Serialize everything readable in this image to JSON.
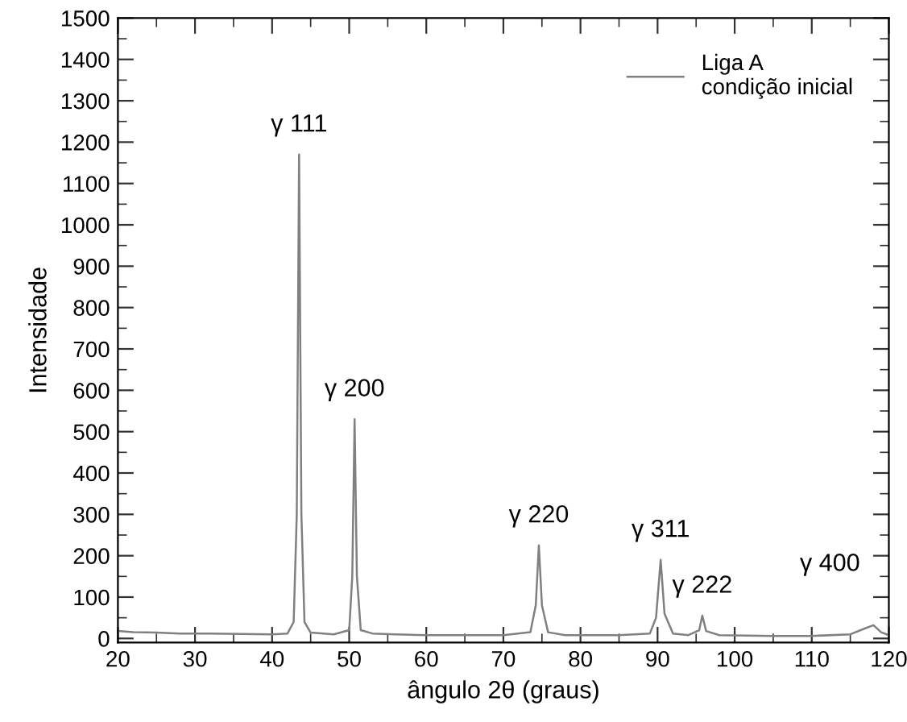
{
  "chart_data": {
    "type": "line",
    "xlabel": "ângulo 2θ (graus)",
    "ylabel": "Intensidade",
    "x": [
      20,
      22,
      25,
      28,
      32,
      36,
      40,
      42,
      42.8,
      43.2,
      43.5,
      43.8,
      44.2,
      45,
      48,
      50,
      50.4,
      50.7,
      51.0,
      51.5,
      53,
      56,
      60,
      65,
      70,
      73.5,
      74.2,
      74.6,
      75,
      75.8,
      78,
      85,
      89,
      89.8,
      90.4,
      90.9,
      92,
      94,
      95.4,
      95.8,
      96.3,
      98,
      105,
      110,
      115,
      117,
      118,
      119,
      120
    ],
    "series": [
      {
        "name": "Liga A\ncondição inicial",
        "color": "#808080",
        "values": [
          18,
          15,
          14,
          12,
          12,
          11,
          10,
          12,
          40,
          300,
          1170,
          300,
          40,
          14,
          10,
          20,
          150,
          530,
          150,
          20,
          12,
          10,
          8,
          8,
          8,
          15,
          80,
          225,
          80,
          15,
          8,
          8,
          12,
          50,
          190,
          60,
          12,
          8,
          20,
          55,
          18,
          8,
          6,
          6,
          10,
          25,
          32,
          15,
          8
        ]
      }
    ],
    "annotations": [
      {
        "text": "γ 111",
        "x": 43.5,
        "y": 1170
      },
      {
        "text": "γ 200",
        "x": 50.7,
        "y": 530
      },
      {
        "text": "γ 220",
        "x": 74.6,
        "y": 225
      },
      {
        "text": "γ 311",
        "x": 90.4,
        "y": 190
      },
      {
        "text": "γ 222",
        "x": 95.8,
        "y": 55
      },
      {
        "text": "γ 400",
        "x": 118,
        "y": 32
      }
    ],
    "xlim": [
      20,
      120
    ],
    "xticks": [
      20,
      30,
      40,
      50,
      60,
      70,
      80,
      90,
      100,
      110,
      120
    ],
    "ylim": [
      -10,
      1500
    ],
    "yticks": [
      0,
      100,
      200,
      300,
      400,
      500,
      600,
      700,
      800,
      900,
      1000,
      1100,
      1200,
      1300,
      1400,
      1500
    ],
    "legend": "top right",
    "grid": false,
    "marker": "none",
    "line_style": "solid"
  }
}
